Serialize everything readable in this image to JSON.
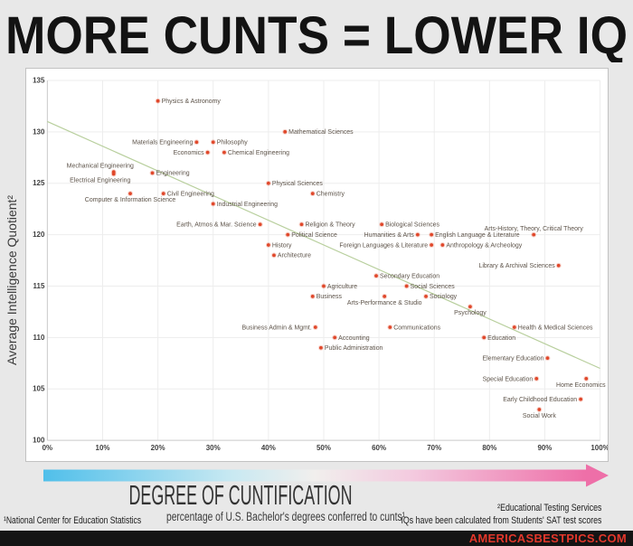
{
  "title": "MORE CUNTS = LOWER IQ",
  "axis": {
    "y_label": "Average Intelligence Quotient²"
  },
  "arrow_label": {
    "heading": "DEGREE OF CUNTIFICATION",
    "subheading": "percentage of U.S. Bachelor's degrees conferred to cunts¹"
  },
  "footnotes": {
    "left": "¹National Center for Education Statistics",
    "right_line1": "²Educational Testing Services",
    "right_line2": "IQs have been calculated from Students' SAT test scores"
  },
  "banner": {
    "text": "AMERICASBESTPICS.COM"
  },
  "colors": {
    "dot": "#e0482b",
    "dot_halo": "#e0482b",
    "dot_label": "#5d5349",
    "trend": "#b8cf9d",
    "grid": "#ededed",
    "axis_line": "#cccccc",
    "tick_text": "#3f3f3f",
    "page_bg": "#e8e8e8",
    "panel_border": "#c2c2c2",
    "title_color": "#131313",
    "heading_color": "#333333",
    "subheading_color": "#3a3a3a",
    "banner_bg": "#141414",
    "banner_text": "#e2372b",
    "arrow_left": "#50bfea",
    "arrow_mid": "#f1efed",
    "arrow_right": "#ee6fa8"
  },
  "chart_data": {
    "type": "scatter",
    "title": "MORE CUNTS = LOWER IQ",
    "xlabel": "DEGREE OF CUNTIFICATION — percentage of U.S. Bachelor's degrees conferred to cunts",
    "ylabel": "Average Intelligence Quotient",
    "xlim": [
      0,
      100
    ],
    "ylim": [
      100,
      135
    ],
    "x_ticks": [
      "0%",
      "10%",
      "20%",
      "30%",
      "40%",
      "50%",
      "60%",
      "70%",
      "80%",
      "90%",
      "100%"
    ],
    "y_ticks": [
      "100",
      "105",
      "110",
      "115",
      "120",
      "125",
      "130",
      "135"
    ],
    "grid": true,
    "legend": "none",
    "trendline": {
      "x1": 0,
      "y1": 131,
      "x2": 100,
      "y2": 107
    },
    "points": [
      {
        "label": "Physics & Astronomy",
        "x": 20,
        "y": 133,
        "side": "right"
      },
      {
        "label": "Mathematical Sciences",
        "x": 43,
        "y": 130,
        "side": "right"
      },
      {
        "label": "Materials Engineering",
        "x": 27,
        "y": 129,
        "side": "left"
      },
      {
        "label": "Philosophy",
        "x": 30,
        "y": 129,
        "side": "right"
      },
      {
        "label": "Economics",
        "x": 29,
        "y": 128,
        "side": "left"
      },
      {
        "label": "Chemical Engineering",
        "x": 32,
        "y": 128,
        "side": "right"
      },
      {
        "label": "Mechanical Engineering",
        "x": 12,
        "y": 126.1,
        "side": "above",
        "dx": -15
      },
      {
        "label": "Electrical Engineering",
        "x": 12,
        "y": 125.9,
        "side": "below",
        "dx": -15
      },
      {
        "label": "Engineering",
        "x": 19,
        "y": 126,
        "side": "right"
      },
      {
        "label": "Physical Sciences",
        "x": 40,
        "y": 125,
        "side": "right"
      },
      {
        "label": "Computer & Information Science",
        "x": 15,
        "y": 124,
        "side": "below"
      },
      {
        "label": "Civil Engineering",
        "x": 21,
        "y": 124,
        "side": "right"
      },
      {
        "label": "Chemistry",
        "x": 48,
        "y": 124,
        "side": "right"
      },
      {
        "label": "Industrial Engineering",
        "x": 30,
        "y": 123,
        "side": "right"
      },
      {
        "label": "Earth, Atmos & Mar. Science",
        "x": 38.5,
        "y": 121,
        "side": "left"
      },
      {
        "label": "Religion & Theory",
        "x": 46,
        "y": 121,
        "side": "right"
      },
      {
        "label": "Biological Sciences",
        "x": 60.5,
        "y": 121,
        "side": "right"
      },
      {
        "label": "Political Science",
        "x": 43.5,
        "y": 120,
        "side": "right"
      },
      {
        "label": "Humanities & Arts",
        "x": 67,
        "y": 120,
        "side": "left"
      },
      {
        "label": "English Language & Literature",
        "x": 69.5,
        "y": 120,
        "side": "right"
      },
      {
        "label": "Arts-History, Theory, Critical Theory",
        "x": 88,
        "y": 120,
        "side": "above"
      },
      {
        "label": "History",
        "x": 40,
        "y": 119,
        "side": "right"
      },
      {
        "label": "Foreign Languages & Literature",
        "x": 69.5,
        "y": 119,
        "side": "left"
      },
      {
        "label": "Anthropology & Archeology",
        "x": 71.5,
        "y": 119,
        "side": "right"
      },
      {
        "label": "Architecture",
        "x": 41,
        "y": 118,
        "side": "right"
      },
      {
        "label": "Library & Archival Sciences",
        "x": 92.5,
        "y": 117,
        "side": "left"
      },
      {
        "label": "Secondary Education",
        "x": 59.5,
        "y": 116,
        "side": "right"
      },
      {
        "label": "Agriculture",
        "x": 50,
        "y": 115,
        "side": "right"
      },
      {
        "label": "Social Sciences",
        "x": 65,
        "y": 115,
        "side": "right"
      },
      {
        "label": "Business",
        "x": 48,
        "y": 114,
        "side": "right"
      },
      {
        "label": "Arts-Performance & Studio",
        "x": 61,
        "y": 114,
        "side": "below"
      },
      {
        "label": "Sociology",
        "x": 68.5,
        "y": 114,
        "side": "right"
      },
      {
        "label": "Psychology",
        "x": 76.5,
        "y": 113,
        "side": "below"
      },
      {
        "label": "Business Admin & Mgmt.",
        "x": 48.5,
        "y": 111,
        "side": "left"
      },
      {
        "label": "Communications",
        "x": 62,
        "y": 111,
        "side": "right"
      },
      {
        "label": "Health & Medical Sciences",
        "x": 84.5,
        "y": 111,
        "side": "right"
      },
      {
        "label": "Accounting",
        "x": 52,
        "y": 110,
        "side": "right"
      },
      {
        "label": "Education",
        "x": 79,
        "y": 110,
        "side": "right"
      },
      {
        "label": "Public Administration",
        "x": 49.5,
        "y": 109,
        "side": "right"
      },
      {
        "label": "Elementary Education",
        "x": 90.5,
        "y": 108,
        "side": "left"
      },
      {
        "label": "Special Education",
        "x": 88.5,
        "y": 106,
        "side": "left"
      },
      {
        "label": "Home Economics",
        "x": 97.5,
        "y": 106,
        "side": "below",
        "dx": -6
      },
      {
        "label": "Early Childhood Education",
        "x": 96.5,
        "y": 104,
        "side": "left"
      },
      {
        "label": "Social Work",
        "x": 89,
        "y": 103,
        "side": "below"
      }
    ]
  }
}
